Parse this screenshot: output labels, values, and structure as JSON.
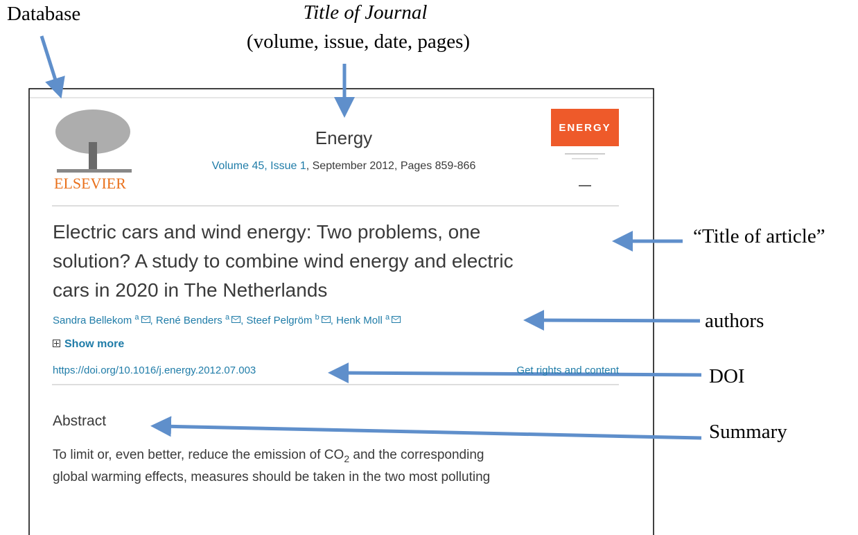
{
  "annotations": {
    "database": "Database",
    "journal_title": "Title of Journal",
    "journal_details": "(volume, issue, date, pages)",
    "article_title": "“Title of article”",
    "authors": "authors",
    "doi": "DOI",
    "summary": "Summary"
  },
  "screenshot": {
    "publisher": "ELSEVIER",
    "cover_text": "ENERGY",
    "journal": "Energy",
    "volume_issue": "Volume 45, Issue 1",
    "citation": ", September 2012, Pages 859-866",
    "article_title": [
      "Electric cars and wind energy: Two problems, one",
      "solution? A study to combine wind energy and electric",
      "cars in 2020 in The Netherlands"
    ],
    "author_separator": ", ",
    "authors": [
      {
        "name": "Sandra Bellekom",
        "affiliation": "a"
      },
      {
        "name": "René Benders",
        "affiliation": "a"
      },
      {
        "name": "Steef Pelgröm",
        "affiliation": "b"
      },
      {
        "name": "Henk Moll",
        "affiliation": "a"
      }
    ],
    "show_more": "Show more",
    "doi": "https://doi.org/10.1016/j.energy.2012.07.003",
    "rights": "Get rights and content",
    "abstract_heading": "Abstract",
    "abstract": {
      "line1_before": "To limit or, even better, reduce the emission of CO",
      "line1_subscript": "2",
      "line1_after": " and the corresponding",
      "line2": "global warming effects, measures should be taken in the two most polluting"
    }
  }
}
